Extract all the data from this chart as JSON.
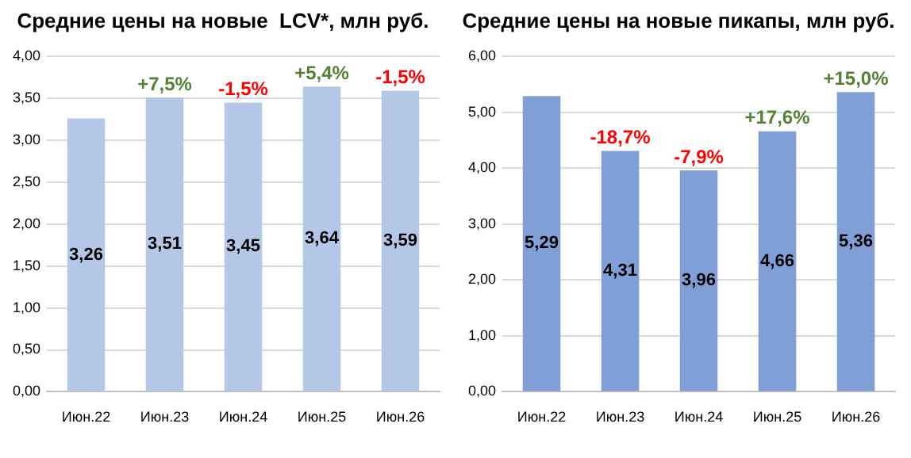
{
  "chart_data": [
    {
      "type": "bar",
      "title": "Средние цены на новые  LCV*, млн руб.",
      "categories": [
        "Июн.22",
        "Июн.23",
        "Июн.24",
        "Июн.25",
        "Июн.26"
      ],
      "values": [
        3.26,
        3.51,
        3.45,
        3.64,
        3.59
      ],
      "value_labels": [
        "3,26",
        "3,51",
        "3,45",
        "3,64",
        "3,59"
      ],
      "color": "#b4c7e7",
      "grid": "y",
      "ylim": [
        0,
        4
      ],
      "yticks": [
        {
          "value": 0,
          "label": "0,00"
        },
        {
          "value": 0.5,
          "label": "0,50"
        },
        {
          "value": 1,
          "label": "1,00"
        },
        {
          "value": 1.5,
          "label": "1,50"
        },
        {
          "value": 2,
          "label": "2,00"
        },
        {
          "value": 2.5,
          "label": "2,50"
        },
        {
          "value": 3,
          "label": "3,00"
        },
        {
          "value": 3.5,
          "label": "3,50"
        },
        {
          "value": 4,
          "label": "4,00"
        }
      ],
      "annotations": [
        {
          "text": "+7,5%",
          "x": "Июн.23",
          "y": 3.51
        },
        {
          "text": "-1,5%",
          "x": "Июн.24",
          "y": 3.45
        },
        {
          "text": "+5,4%",
          "x": "Июн.25",
          "y": 3.64
        },
        {
          "text": "-1,5%",
          "x": "Июн.26",
          "y": 3.59
        }
      ]
    },
    {
      "type": "bar",
      "title": "Средние цены на новые пикапы, млн руб.",
      "categories": [
        "Июн.22",
        "Июн.23",
        "Июн.24",
        "Июн.25",
        "Июн.26"
      ],
      "values": [
        5.29,
        4.31,
        3.96,
        4.66,
        5.36
      ],
      "value_labels": [
        "5,29",
        "4,31",
        "3,96",
        "4,66",
        "5,36"
      ],
      "color": "#7f9fd6",
      "grid": "y",
      "ylim": [
        0,
        6
      ],
      "yticks": [
        {
          "value": 0,
          "label": "0,00"
        },
        {
          "value": 1,
          "label": "1,00"
        },
        {
          "value": 2,
          "label": "2,00"
        },
        {
          "value": 3,
          "label": "3,00"
        },
        {
          "value": 4,
          "label": "4,00"
        },
        {
          "value": 5,
          "label": "5,00"
        },
        {
          "value": 6,
          "label": "6,00"
        }
      ],
      "annotations": [
        {
          "text": "-18,7%",
          "x": "Июн.23",
          "y": 4.31
        },
        {
          "text": "-7,9%",
          "x": "Июн.24",
          "y": 3.96
        },
        {
          "text": "+17,6%",
          "x": "Июн.25",
          "y": 4.66
        },
        {
          "text": "+15,0%",
          "x": "Июн.26",
          "y": 5.36
        }
      ]
    }
  ]
}
